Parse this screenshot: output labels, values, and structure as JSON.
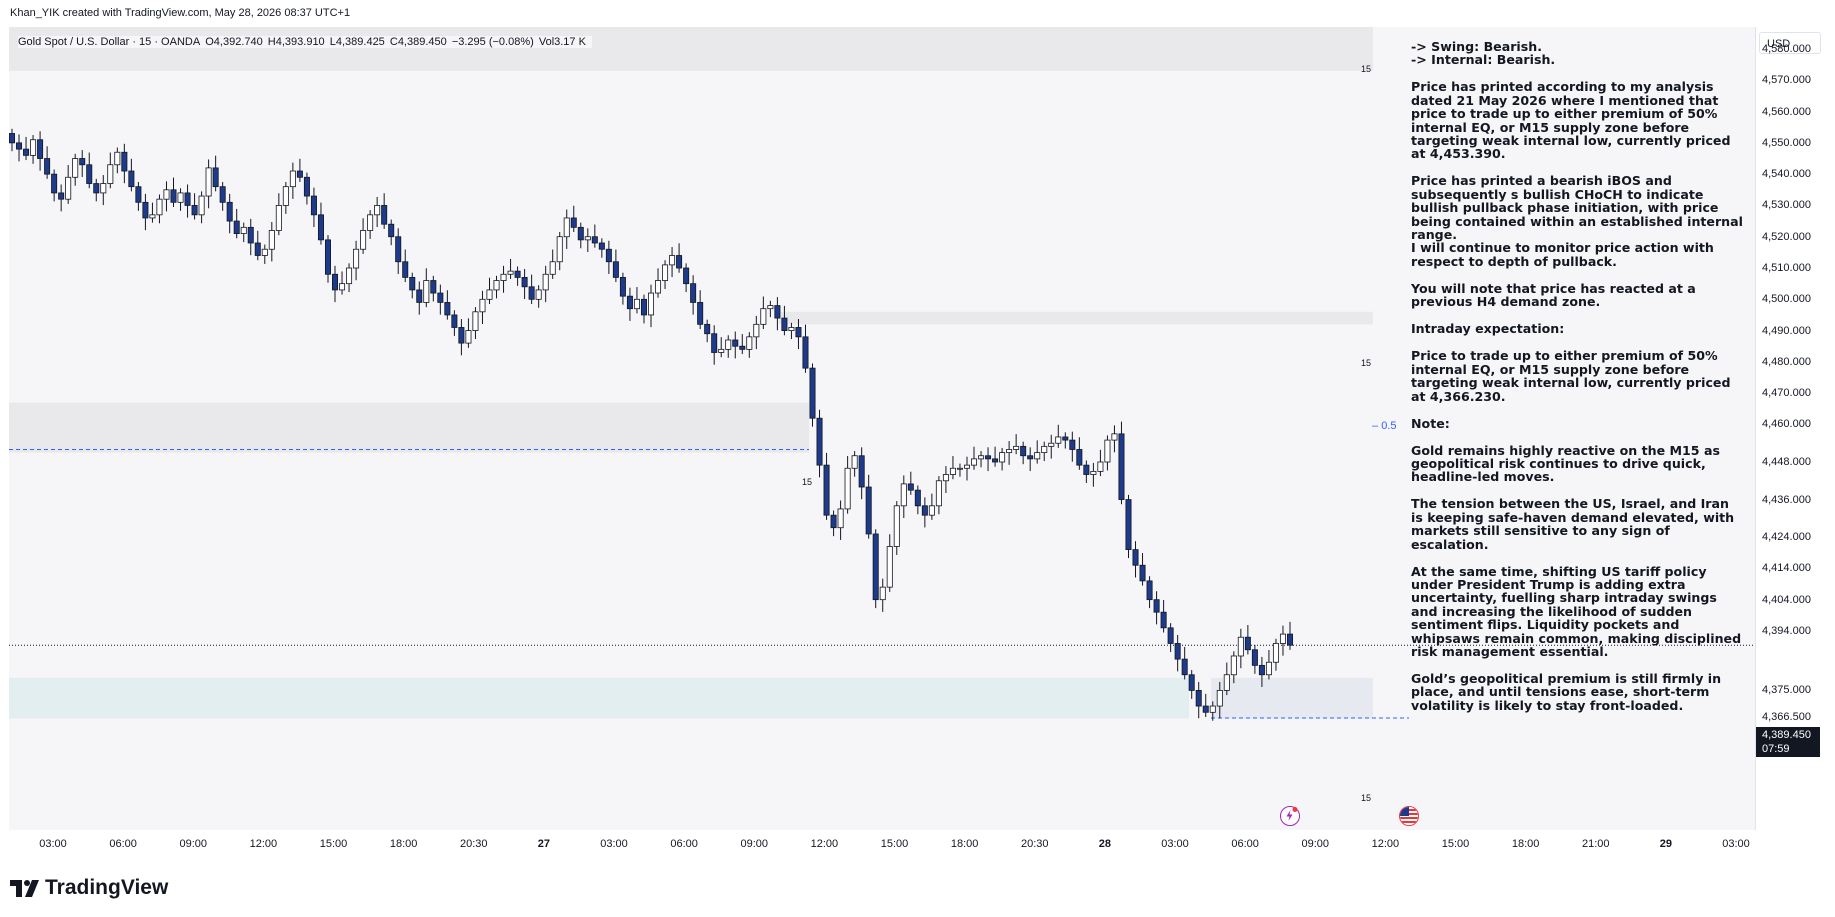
{
  "header": {
    "credit": "Khan_YIK created with TradingView.com, May 28, 2026 08:37 UTC+1"
  },
  "symbol": {
    "name": "Gold Spot / U.S. Dollar · 15 · OANDA",
    "open": "O4,392.740",
    "high": "H4,393.910",
    "low": "L4,389.425",
    "close": "C4,389.450",
    "change": "−3.295 (−0.08%)",
    "volume": "Vol3.17 K"
  },
  "notes": [
    "-> Swing: Bearish.\n-> Internal: Bearish.",
    "Price has printed according to my analysis dated 21 May 2026 where I mentioned that price to trade up to either premium of 50% internal EQ, or M15 supply zone before targeting weak internal low, currently priced at 4,453.390.",
    "Price has printed a bearish iBOS and subsequently s bullish CHoCH to indicate bullish pullback phase initiation, with price being contained within an established internal range.\nI will continue to monitor price action with respect to depth of pullback.",
    "You will note that price has reacted at a previous H4 demand zone.",
    "Intraday expectation:",
    "Price to trade up to either premium of 50% internal EQ, or M15 supply zone before targeting weak internal low, currently priced at 4,366.230.",
    "Note:",
    "Gold remains highly reactive on the M15 as geopolitical risk continues to drive quick, headline-led moves.",
    "The tension between the US, Israel, and Iran is keeping safe-haven demand elevated, with markets still sensitive to any sign of escalation.",
    "At the same time, shifting US tariff policy under President Trump is adding extra uncertainty, fuelling sharp intraday swings and increasing the likelihood of sudden sentiment flips. Liquidity pockets and whipsaws remain common, making disciplined risk management essential.",
    "Gold’s geopolitical premium is still firmly in place, and until tensions ease, short-term volatility is likely to stay front-loaded."
  ],
  "axis": {
    "currency": "USD",
    "last_price": "4,389.450",
    "countdown": "07:59"
  },
  "zone_labels": {
    "a": "15",
    "b": "15",
    "c": "15",
    "d": "15"
  },
  "fib_label": "0.5",
  "brand": {
    "name": "TradingView"
  },
  "colors": {
    "bull_candle": "#ffffff",
    "bear_candle": "#1e3a8a",
    "wick": "#131722",
    "zone_grey": "#e9e8eb",
    "zone_demand": "#dfecf0",
    "dashed_line": "#2962ff"
  },
  "chart_data": {
    "type": "candlestick",
    "ylim": [
      4363,
      4588
    ],
    "ytick_labels": [
      {
        "label": "4,580.000",
        "value": 4580
      },
      {
        "label": "4,570.000",
        "value": 4570
      },
      {
        "label": "4,560.000",
        "value": 4560
      },
      {
        "label": "4,550.000",
        "value": 4550
      },
      {
        "label": "4,540.000",
        "value": 4540
      },
      {
        "label": "4,530.000",
        "value": 4530
      },
      {
        "label": "4,520.000",
        "value": 4520
      },
      {
        "label": "4,510.000",
        "value": 4510
      },
      {
        "label": "4,500.000",
        "value": 4500
      },
      {
        "label": "4,490.000",
        "value": 4490
      },
      {
        "label": "4,480.000",
        "value": 4480
      },
      {
        "label": "4,470.000",
        "value": 4470
      },
      {
        "label": "4,460.000",
        "value": 4460
      },
      {
        "label": "4,448.000",
        "value": 4448
      },
      {
        "label": "4,436.000",
        "value": 4436
      },
      {
        "label": "4,424.000",
        "value": 4424
      },
      {
        "label": "4,414.000",
        "value": 4414
      },
      {
        "label": "4,404.000",
        "value": 4404
      },
      {
        "label": "4,394.000",
        "value": 4394
      },
      {
        "label": "4,375.000",
        "value": 4375
      },
      {
        "label": "4,366.500",
        "value": 4366.5
      }
    ],
    "xtick_labels": [
      {
        "label": "03:00",
        "bold": false
      },
      {
        "label": "06:00",
        "bold": false
      },
      {
        "label": "09:00",
        "bold": false
      },
      {
        "label": "12:00",
        "bold": false
      },
      {
        "label": "15:00",
        "bold": false
      },
      {
        "label": "18:00",
        "bold": false
      },
      {
        "label": "20:30",
        "bold": false
      },
      {
        "label": "27",
        "bold": true
      },
      {
        "label": "03:00",
        "bold": false
      },
      {
        "label": "06:00",
        "bold": false
      },
      {
        "label": "09:00",
        "bold": false
      },
      {
        "label": "12:00",
        "bold": false
      },
      {
        "label": "15:00",
        "bold": false
      },
      {
        "label": "18:00",
        "bold": false
      },
      {
        "label": "20:30",
        "bold": false
      },
      {
        "label": "28",
        "bold": true
      },
      {
        "label": "03:00",
        "bold": false
      },
      {
        "label": "06:00",
        "bold": false
      },
      {
        "label": "09:00",
        "bold": false
      },
      {
        "label": "12:00",
        "bold": false
      },
      {
        "label": "15:00",
        "bold": false
      },
      {
        "label": "18:00",
        "bold": false
      },
      {
        "label": "21:00",
        "bold": false
      },
      {
        "label": "29",
        "bold": true
      },
      {
        "label": "03:00",
        "bold": false
      }
    ],
    "close_path": [
      4550,
      4548,
      4546,
      4551,
      4545,
      4540,
      4534,
      4532,
      4539,
      4545,
      4543,
      4537,
      4534,
      4537,
      4543,
      4547,
      4541,
      4536,
      4531,
      4526,
      4527,
      4532,
      4535,
      4531,
      4534,
      4530,
      4527,
      4533,
      4542,
      4536,
      4531,
      4525,
      4521,
      4523,
      4518,
      4514,
      4516,
      4522,
      4530,
      4536,
      4541,
      4539,
      4533,
      4527,
      4519,
      4508,
      4503,
      4505,
      4510,
      4516,
      4522,
      4527,
      4530,
      4524,
      4520,
      4512,
      4507,
      4503,
      4499,
      4506,
      4502,
      4499,
      4495,
      4491,
      4486,
      4490,
      4496,
      4500,
      4503,
      4506,
      4508,
      4509,
      4507,
      4504,
      4500,
      4503,
      4508,
      4512,
      4520,
      4526,
      4523,
      4519,
      4520,
      4518,
      4516,
      4512,
      4507,
      4501,
      4497,
      4500,
      4495,
      4502,
      4506,
      4511,
      4514,
      4510,
      4505,
      4499,
      4492,
      4489,
      4483,
      4484,
      4487,
      4485,
      4484,
      4488,
      4492,
      4497,
      4498,
      4494,
      4490,
      4491,
      4488,
      4478,
      4462,
      4447,
      4431,
      4427,
      4433,
      4446,
      4450,
      4440,
      4425,
      4404,
      4408,
      4421,
      4434,
      4441,
      4439,
      4434,
      4431,
      4434,
      4442,
      4444,
      4446,
      4446,
      4447,
      4449,
      4450,
      4449,
      4448,
      4451,
      4452,
      4453,
      4450,
      4449,
      4451,
      4453,
      4454,
      4456,
      4455,
      4452,
      4447,
      4444,
      4445,
      4448,
      4455,
      4457,
      4436,
      4420,
      4415,
      4410,
      4404,
      4400,
      4395,
      4390,
      4385,
      4380,
      4375,
      4370,
      4368,
      4370,
      4375,
      4380,
      4386,
      4392,
      4388,
      4383,
      4380,
      4384,
      4390,
      4393,
      4389.45
    ],
    "zones": [
      {
        "label": "15",
        "from": 4573,
        "to": 4588,
        "kind": "supply"
      },
      {
        "label": "15",
        "from": 4492,
        "to": 4496,
        "kind": "supply"
      },
      {
        "label": "15",
        "from": 4451,
        "to": 4467,
        "kind": "supply"
      },
      {
        "label": "15",
        "from": 4366,
        "to": 4379,
        "kind": "demand"
      }
    ],
    "levels": [
      {
        "name": "weak internal high",
        "value": 4588
      },
      {
        "name": "internal low",
        "value": 4452
      },
      {
        "name": "weak internal low",
        "value": 4366.2
      },
      {
        "name": "current price",
        "value": 4389.45
      }
    ],
    "fib": {
      "label": "0.5",
      "value": 4475
    }
  }
}
